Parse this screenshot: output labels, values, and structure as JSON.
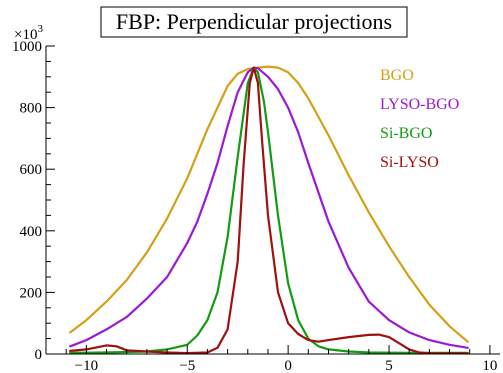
{
  "chart_data": {
    "type": "line",
    "title": "FBP: Perpendicular projections",
    "xlabel": "",
    "ylabel": "",
    "y_multiplier_label": "×10³",
    "y_multiplier_base": "×10",
    "y_multiplier_exp": "3",
    "xlim": [
      -12,
      10.5
    ],
    "ylim": [
      0,
      1000
    ],
    "x_ticks": [
      -10,
      -5,
      0,
      5,
      10
    ],
    "y_ticks": [
      0,
      200,
      400,
      600,
      800,
      1000
    ],
    "x_tick_labels": [
      "−10",
      "−5",
      "0",
      "5",
      "10"
    ],
    "y_tick_labels": [
      "0",
      "200",
      "400",
      "600",
      "800",
      "1000"
    ],
    "legend_position": "top-right",
    "grid": false,
    "series": [
      {
        "name": "BGO",
        "color": "#d4a017",
        "x": [
          -10.8,
          -10,
          -9,
          -8,
          -7,
          -6,
          -5,
          -4.5,
          -4,
          -3.5,
          -3,
          -2.5,
          -2,
          -1.5,
          -1,
          -0.5,
          0,
          0.5,
          1,
          2,
          3,
          4,
          5,
          6,
          7,
          8,
          8.9
        ],
        "y": [
          70,
          110,
          170,
          240,
          330,
          440,
          570,
          650,
          730,
          800,
          870,
          910,
          925,
          930,
          933,
          930,
          915,
          880,
          830,
          710,
          580,
          460,
          350,
          250,
          160,
          90,
          40
        ]
      },
      {
        "name": "LYSO-BGO",
        "color": "#9a19d6",
        "x": [
          -10.8,
          -10,
          -9,
          -8,
          -7,
          -6,
          -5,
          -4.5,
          -4,
          -3.5,
          -3,
          -2.5,
          -2,
          -1.7,
          -1.5,
          -1,
          -0.5,
          0,
          0.5,
          1,
          2,
          3,
          4,
          5,
          6,
          7,
          8,
          8.9
        ],
        "y": [
          25,
          45,
          80,
          120,
          180,
          250,
          360,
          430,
          520,
          620,
          740,
          850,
          915,
          930,
          928,
          900,
          860,
          800,
          720,
          620,
          430,
          280,
          170,
          110,
          70,
          45,
          30,
          20
        ]
      },
      {
        "name": "Si-BGO",
        "color": "#119c11",
        "x": [
          -10.8,
          -9,
          -7,
          -6,
          -5,
          -4.5,
          -4,
          -3.5,
          -3,
          -2.5,
          -2,
          -1.7,
          -1.5,
          -1.2,
          -1,
          -0.5,
          0,
          0.5,
          1,
          1.5,
          2,
          3,
          4,
          6,
          8,
          8.9
        ],
        "y": [
          4,
          5,
          8,
          15,
          30,
          60,
          110,
          200,
          380,
          640,
          880,
          930,
          915,
          820,
          720,
          450,
          230,
          110,
          50,
          25,
          15,
          8,
          5,
          4,
          4,
          4
        ]
      },
      {
        "name": "Si-LYSO",
        "color": "#a01010",
        "x": [
          -10.8,
          -10,
          -9,
          -8.5,
          -8,
          -7,
          -6,
          -5,
          -4,
          -3.5,
          -3,
          -2.5,
          -2.2,
          -1.9,
          -1.7,
          -1.5,
          -1.3,
          -1,
          -0.5,
          0,
          0.5,
          1,
          1.5,
          2,
          3,
          4,
          4.5,
          5,
          5.5,
          6,
          6.5,
          7,
          8,
          8.9
        ],
        "y": [
          10,
          15,
          28,
          25,
          12,
          8,
          5,
          3,
          5,
          20,
          80,
          300,
          620,
          880,
          930,
          880,
          700,
          450,
          200,
          100,
          65,
          45,
          40,
          45,
          55,
          62,
          63,
          55,
          35,
          15,
          5,
          2,
          2,
          2
        ]
      }
    ]
  }
}
